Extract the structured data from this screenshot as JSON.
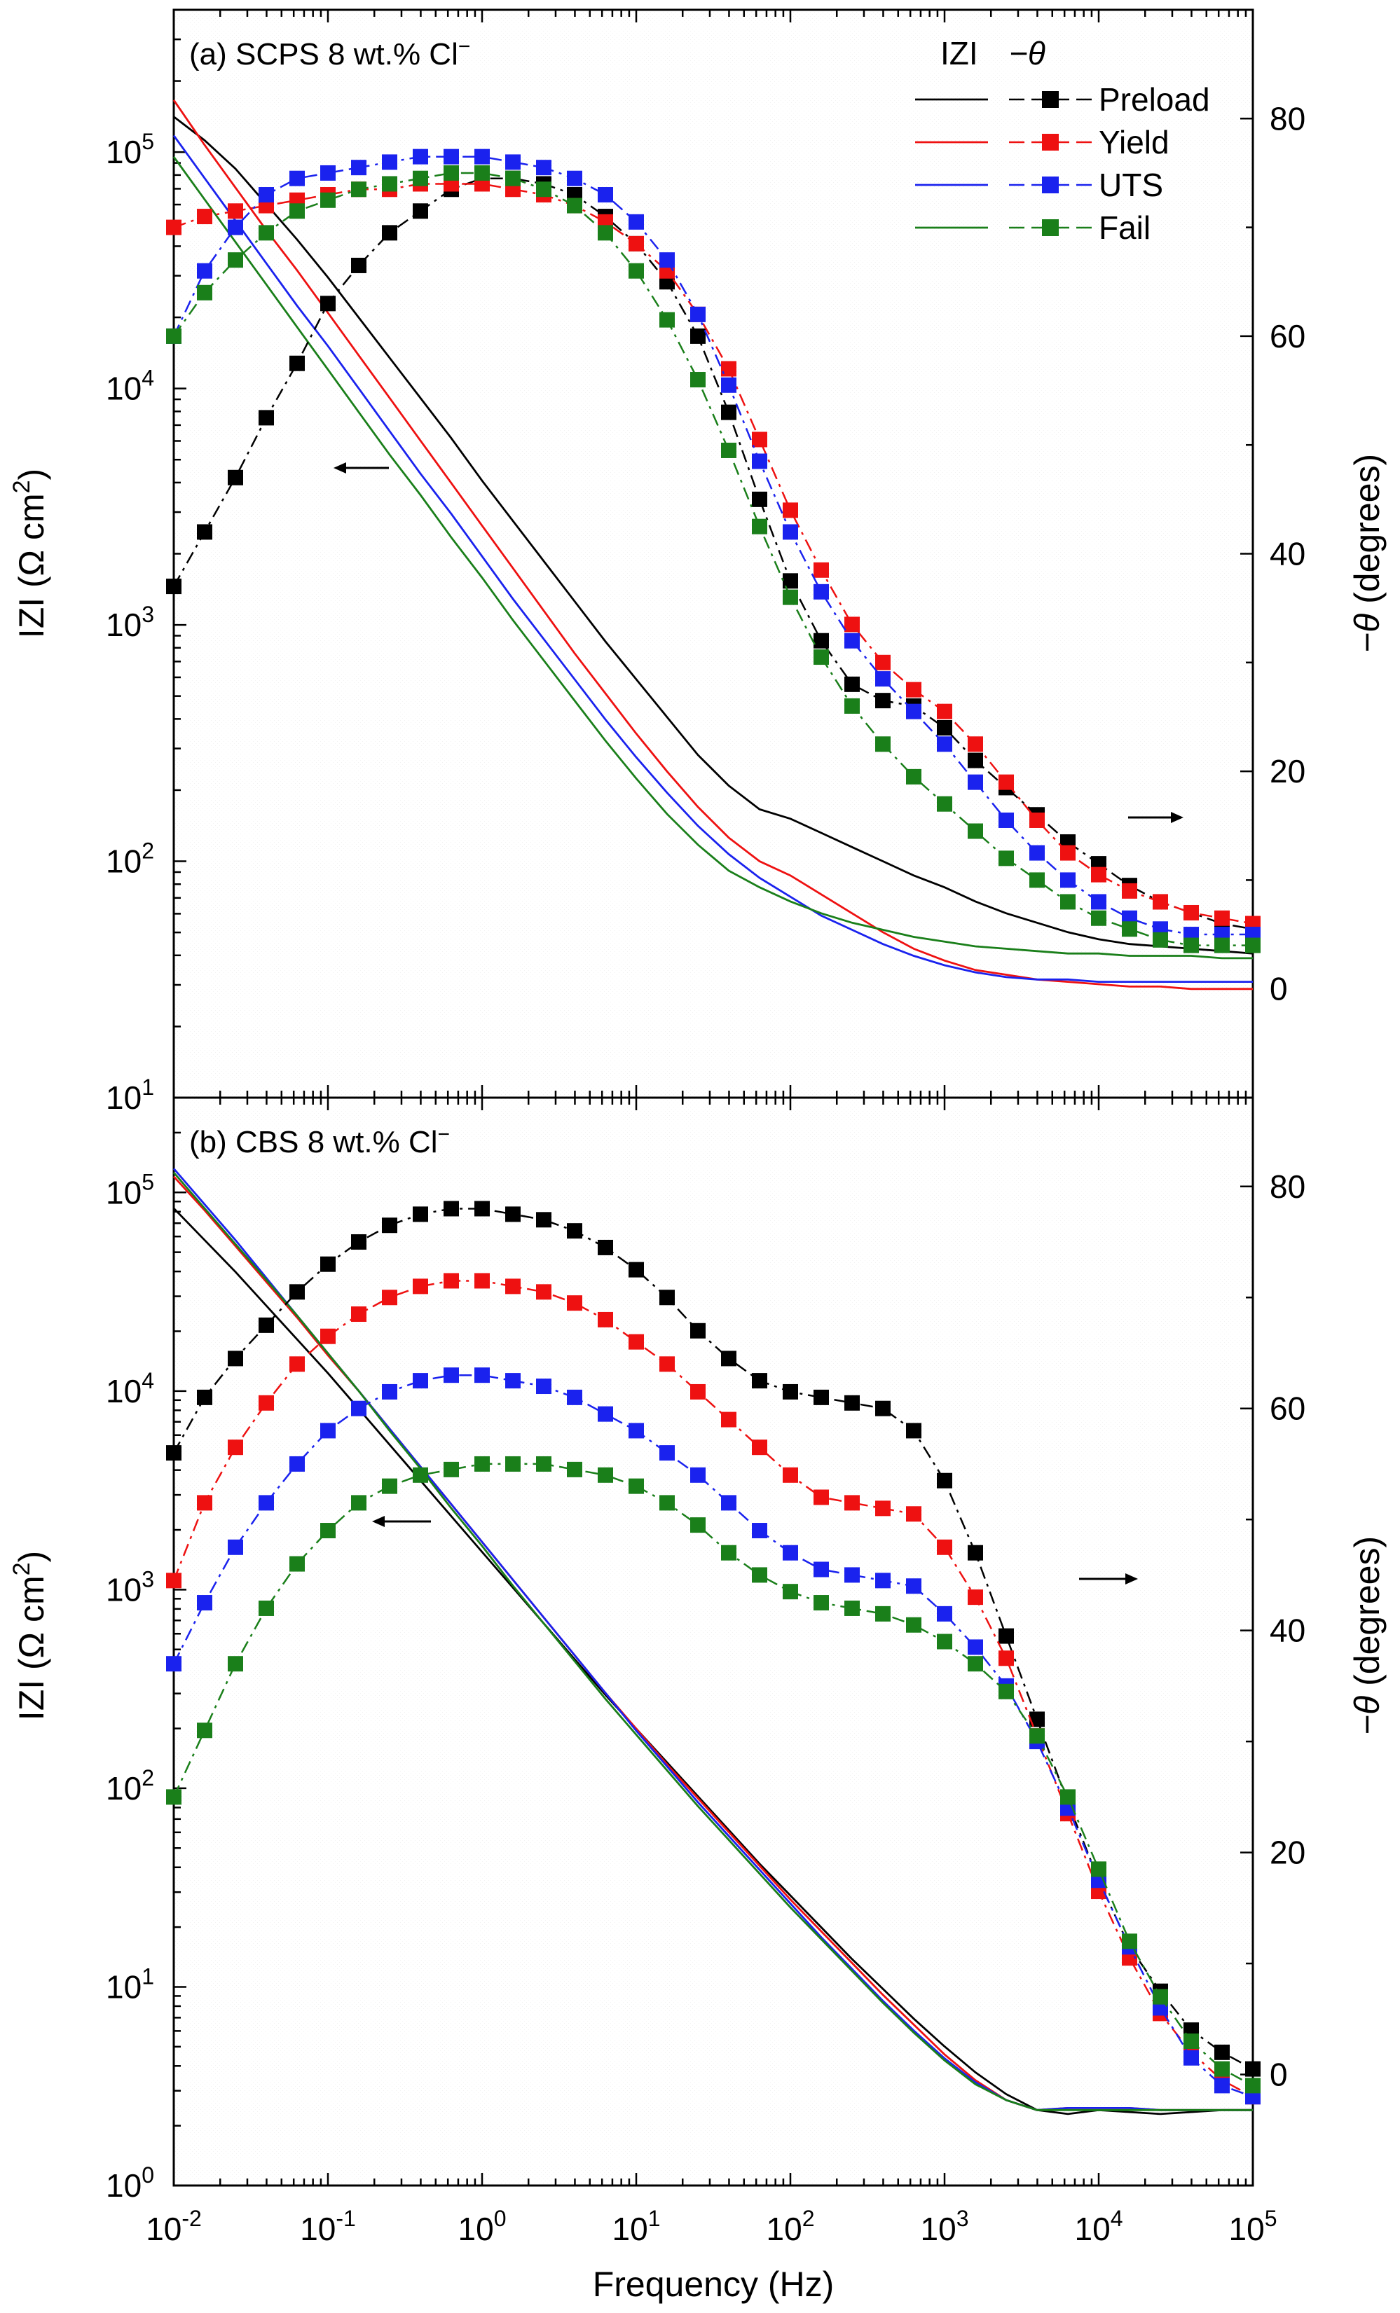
{
  "colors": {
    "Preload": "#000000",
    "Yield": "#ee1111",
    "UTS": "#1a22ee",
    "Fail": "#1a7f1a"
  },
  "xlabel": "Frequency (Hz)",
  "ylabel_left_pre": "IZI (Ω cm",
  "ylabel_left_sup": "2",
  "ylabel_left_post": ")",
  "ylabel_right_theta": "−θ",
  "ylabel_right_rest": " (degrees)",
  "x_tick_labels": [
    "10",
    "10",
    "10",
    "10",
    "10",
    "10",
    "10",
    "10"
  ],
  "x_tick_exponents": [
    "-2",
    "-1",
    "0",
    "1",
    "2",
    "3",
    "4",
    "5"
  ],
  "legend": {
    "header_z": "IZI",
    "header_theta": "−θ",
    "entries": [
      "Preload",
      "Yield",
      "UTS",
      "Fail"
    ]
  },
  "chart_data": [
    {
      "type": "line",
      "panel": "a",
      "title_pre": "(a) SCPS 8 wt.% Cl",
      "title_sup": "−",
      "xscale": "log",
      "xlim": [
        0.01,
        100000
      ],
      "left_axis": {
        "label": "IZI (Ω cm2)",
        "scale": "log",
        "ylim": [
          10,
          400000
        ],
        "tick_exponents": [
          "1",
          "2",
          "3",
          "4",
          "5"
        ],
        "tick_base": "10"
      },
      "right_axis": {
        "label": "−θ (degrees)",
        "ylim": [
          -10,
          90
        ],
        "ticks": [
          "0",
          "20",
          "40",
          "60",
          "80"
        ]
      },
      "frequency_log10": [
        -2,
        -1.8,
        -1.6,
        -1.4,
        -1.2,
        -1,
        -0.8,
        -0.6,
        -0.4,
        -0.2,
        0,
        0.2,
        0.4,
        0.6,
        0.8,
        1,
        1.2,
        1.4,
        1.6,
        1.8,
        2,
        2.2,
        2.4,
        2.6,
        2.8,
        3,
        3.2,
        3.4,
        3.6,
        3.8,
        4,
        4.2,
        4.4,
        4.6,
        4.8,
        5
      ],
      "impedance_series": [
        {
          "name": "Preload",
          "log10_Z": [
            5.15,
            5.05,
            4.93,
            4.78,
            4.63,
            4.47,
            4.3,
            4.13,
            3.96,
            3.79,
            3.61,
            3.44,
            3.27,
            3.1,
            2.93,
            2.77,
            2.61,
            2.45,
            2.32,
            2.22,
            2.18,
            2.12,
            2.06,
            2.0,
            1.94,
            1.89,
            1.83,
            1.78,
            1.74,
            1.7,
            1.67,
            1.65,
            1.64,
            1.63,
            1.62,
            1.61
          ]
        },
        {
          "name": "Yield",
          "log10_Z": [
            5.22,
            5.03,
            4.85,
            4.67,
            4.5,
            4.32,
            4.14,
            3.96,
            3.78,
            3.6,
            3.42,
            3.24,
            3.06,
            2.88,
            2.71,
            2.54,
            2.38,
            2.23,
            2.1,
            2.0,
            1.94,
            1.86,
            1.78,
            1.7,
            1.63,
            1.58,
            1.54,
            1.52,
            1.5,
            1.49,
            1.48,
            1.47,
            1.47,
            1.46,
            1.46,
            1.46
          ]
        },
        {
          "name": "UTS",
          "log10_Z": [
            5.07,
            4.89,
            4.71,
            4.53,
            4.35,
            4.18,
            4.0,
            3.82,
            3.64,
            3.47,
            3.29,
            3.11,
            2.94,
            2.77,
            2.6,
            2.44,
            2.29,
            2.15,
            2.03,
            1.93,
            1.85,
            1.77,
            1.71,
            1.65,
            1.6,
            1.56,
            1.53,
            1.51,
            1.5,
            1.5,
            1.49,
            1.49,
            1.49,
            1.49,
            1.49,
            1.49
          ]
        },
        {
          "name": "Fail",
          "log10_Z": [
            4.98,
            4.8,
            4.62,
            4.44,
            4.26,
            4.08,
            3.9,
            3.72,
            3.55,
            3.37,
            3.2,
            3.02,
            2.85,
            2.68,
            2.51,
            2.35,
            2.2,
            2.07,
            1.96,
            1.89,
            1.83,
            1.78,
            1.74,
            1.71,
            1.68,
            1.66,
            1.64,
            1.63,
            1.62,
            1.61,
            1.61,
            1.6,
            1.6,
            1.6,
            1.59,
            1.59
          ]
        }
      ],
      "phase_series": [
        {
          "name": "Preload",
          "neg_theta_deg": [
            37,
            42,
            47,
            52.5,
            57.5,
            63,
            66.5,
            69.5,
            71.5,
            73.5,
            74.5,
            74.5,
            74,
            73,
            71,
            68.5,
            65,
            60,
            53,
            45,
            37.5,
            32,
            28,
            26.5,
            26,
            24,
            21,
            18.5,
            16,
            13.5,
            11.5,
            9.5,
            8,
            7,
            6,
            5.5
          ]
        },
        {
          "name": "Yield",
          "neg_theta_deg": [
            70,
            71,
            71.5,
            72,
            72.5,
            73,
            73.5,
            73.5,
            74,
            74,
            74,
            73.5,
            73,
            72,
            70.5,
            68.5,
            66,
            62,
            57,
            50.5,
            44,
            38.5,
            33.5,
            30,
            27.5,
            25.5,
            22.5,
            19,
            15.5,
            12.5,
            10.5,
            9,
            8,
            7,
            6.5,
            6
          ]
        },
        {
          "name": "UTS",
          "neg_theta_deg": [
            60,
            66,
            70,
            73,
            74.5,
            75,
            75.5,
            76,
            76.5,
            76.5,
            76.5,
            76,
            75.5,
            74.5,
            73,
            70.5,
            67,
            62,
            55.5,
            48.5,
            42,
            36.5,
            32,
            28.5,
            25.5,
            22.5,
            19,
            15.5,
            12.5,
            10,
            8,
            6.5,
            5.5,
            5,
            5,
            5
          ]
        },
        {
          "name": "Fail",
          "neg_theta_deg": [
            60,
            64,
            67,
            69.5,
            71.5,
            72.5,
            73.5,
            74,
            74.5,
            75,
            75,
            74.5,
            73.5,
            72,
            69.5,
            66,
            61.5,
            56,
            49.5,
            42.5,
            36,
            30.5,
            26,
            22.5,
            19.5,
            17,
            14.5,
            12,
            10,
            8,
            6.5,
            5.5,
            4.5,
            4,
            4,
            4
          ]
        }
      ],
      "annotations": {
        "z_arrow": "left",
        "theta_arrow": "right"
      }
    },
    {
      "type": "line",
      "panel": "b",
      "title_pre": "(b) CBS 8 wt.% Cl",
      "title_sup": "−",
      "xscale": "log",
      "xlim": [
        0.01,
        100000
      ],
      "left_axis": {
        "label": "IZI (Ω cm2)",
        "scale": "log",
        "ylim": [
          1,
          300000
        ],
        "tick_exponents": [
          "0",
          "1",
          "2",
          "3",
          "4",
          "5"
        ],
        "tick_base": "10"
      },
      "right_axis": {
        "label": "−θ (degrees)",
        "ylim": [
          -10,
          88
        ],
        "ticks": [
          "0",
          "20",
          "40",
          "60",
          "80"
        ]
      },
      "frequency_log10": [
        -2,
        -1.8,
        -1.6,
        -1.4,
        -1.2,
        -1,
        -0.8,
        -0.6,
        -0.4,
        -0.2,
        0,
        0.2,
        0.4,
        0.6,
        0.8,
        1,
        1.2,
        1.4,
        1.6,
        1.8,
        2,
        2.2,
        2.4,
        2.6,
        2.8,
        3,
        3.2,
        3.4,
        3.6,
        3.8,
        4,
        4.2,
        4.4,
        4.6,
        4.8,
        5
      ],
      "impedance_series": [
        {
          "name": "Preload",
          "log10_Z": [
            4.92,
            4.76,
            4.6,
            4.43,
            4.26,
            4.09,
            3.91,
            3.73,
            3.55,
            3.37,
            3.19,
            3.01,
            2.83,
            2.65,
            2.47,
            2.3,
            2.13,
            1.96,
            1.79,
            1.62,
            1.46,
            1.3,
            1.14,
            0.99,
            0.84,
            0.7,
            0.57,
            0.46,
            0.38,
            0.36,
            0.38,
            0.37,
            0.36,
            0.37,
            0.38,
            0.38
          ]
        },
        {
          "name": "Yield",
          "log10_Z": [
            5.08,
            4.91,
            4.73,
            4.55,
            4.37,
            4.18,
            4.0,
            3.81,
            3.62,
            3.43,
            3.24,
            3.05,
            2.86,
            2.67,
            2.48,
            2.3,
            2.12,
            1.95,
            1.78,
            1.61,
            1.44,
            1.28,
            1.12,
            0.96,
            0.81,
            0.66,
            0.53,
            0.43,
            0.38,
            0.39,
            0.39,
            0.39,
            0.38,
            0.38,
            0.38,
            0.38
          ]
        },
        {
          "name": "UTS",
          "log10_Z": [
            5.12,
            4.94,
            4.76,
            4.57,
            4.38,
            4.19,
            4.0,
            3.81,
            3.62,
            3.43,
            3.24,
            3.05,
            2.86,
            2.67,
            2.48,
            2.29,
            2.11,
            1.93,
            1.76,
            1.59,
            1.42,
            1.25,
            1.09,
            0.93,
            0.78,
            0.64,
            0.52,
            0.43,
            0.38,
            0.39,
            0.39,
            0.39,
            0.38,
            0.38,
            0.38,
            0.38
          ]
        },
        {
          "name": "Fail",
          "log10_Z": [
            5.1,
            4.92,
            4.74,
            4.56,
            4.38,
            4.19,
            4.0,
            3.8,
            3.61,
            3.41,
            3.22,
            3.02,
            2.83,
            2.64,
            2.45,
            2.27,
            2.09,
            1.91,
            1.74,
            1.57,
            1.4,
            1.24,
            1.08,
            0.92,
            0.77,
            0.63,
            0.51,
            0.43,
            0.38,
            0.38,
            0.38,
            0.38,
            0.38,
            0.38,
            0.38,
            0.38
          ]
        }
      ],
      "phase_series": [
        {
          "name": "Preload",
          "neg_theta_deg": [
            56,
            61,
            64.5,
            67.5,
            70.5,
            73,
            75,
            76.5,
            77.5,
            78,
            78,
            77.5,
            77,
            76,
            74.5,
            72.5,
            70,
            67,
            64.5,
            62.5,
            61.5,
            61,
            60.5,
            60,
            58,
            53.5,
            47,
            39.5,
            32,
            24.5,
            17.5,
            11.5,
            7.5,
            4,
            2,
            0.5
          ]
        },
        {
          "name": "Yield",
          "neg_theta_deg": [
            44.5,
            51.5,
            56.5,
            60.5,
            64,
            66.5,
            68.5,
            70,
            71,
            71.5,
            71.5,
            71,
            70.5,
            69.5,
            68,
            66,
            64,
            61.5,
            59,
            56.5,
            54,
            52,
            51.5,
            51,
            50.5,
            47.5,
            43,
            37.5,
            30.5,
            23.5,
            16.5,
            10.5,
            5.5,
            2,
            -0.5,
            -2
          ]
        },
        {
          "name": "UTS",
          "neg_theta_deg": [
            37,
            42.5,
            47.5,
            51.5,
            55,
            58,
            60,
            61.5,
            62.5,
            63,
            63,
            62.5,
            62,
            61,
            59.5,
            58,
            56,
            54,
            51.5,
            49,
            47,
            45.5,
            45,
            44.5,
            44,
            41.5,
            38.5,
            35,
            30,
            24,
            17.5,
            11.5,
            6,
            1.5,
            -1,
            -2
          ]
        },
        {
          "name": "Fail",
          "neg_theta_deg": [
            25,
            31,
            37,
            42,
            46,
            49,
            51.5,
            53,
            54,
            54.5,
            55,
            55,
            55,
            54.5,
            54,
            53,
            51.5,
            49.5,
            47,
            45,
            43.5,
            42.5,
            42,
            41.5,
            40.5,
            39,
            37,
            34.5,
            30.5,
            25,
            18.5,
            12,
            7,
            3,
            0.5,
            -1
          ]
        }
      ],
      "annotations": {
        "z_arrow": "left",
        "theta_arrow": "right"
      }
    }
  ]
}
